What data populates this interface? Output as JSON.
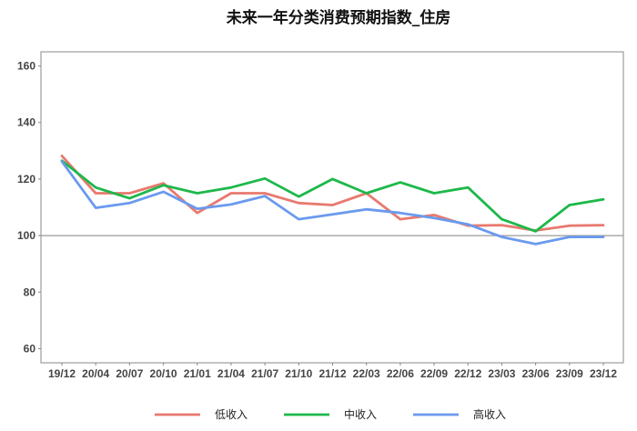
{
  "chart_data": {
    "type": "line",
    "title": "未来一年分类消费预期指数_住房",
    "xlabel": "",
    "ylabel": "",
    "categories": [
      "19/12",
      "20/04",
      "20/07",
      "20/10",
      "21/01",
      "21/04",
      "21/07",
      "21/10",
      "21/12",
      "22/03",
      "22/06",
      "22/09",
      "22/12",
      "23/03",
      "23/06",
      "23/09",
      "23/12"
    ],
    "ylim": [
      55,
      165
    ],
    "yticks": [
      60,
      80,
      100,
      120,
      140,
      160
    ],
    "reference_line": 100,
    "grid": false,
    "legend_position": "bottom",
    "series": [
      {
        "name": "低收入",
        "color": "#E8796F",
        "values": [
          128.2,
          115.0,
          115.0,
          118.5,
          108.0,
          115.0,
          115.0,
          111.5,
          110.8,
          115.0,
          105.8,
          107.3,
          103.5,
          103.7,
          101.8,
          103.5,
          103.7
        ]
      },
      {
        "name": "中收入",
        "color": "#1DB84A",
        "values": [
          126.5,
          117.0,
          113.2,
          117.8,
          115.0,
          117.0,
          120.2,
          113.8,
          120.0,
          115.0,
          118.8,
          115.0,
          117.0,
          105.8,
          101.5,
          110.8,
          112.8
        ]
      },
      {
        "name": "高收入",
        "color": "#6A9AEE",
        "values": [
          126.2,
          109.8,
          111.5,
          115.5,
          109.5,
          111.0,
          114.0,
          105.8,
          107.5,
          109.3,
          108.0,
          106.2,
          104.0,
          99.5,
          97.0,
          99.5,
          99.5
        ]
      }
    ]
  }
}
